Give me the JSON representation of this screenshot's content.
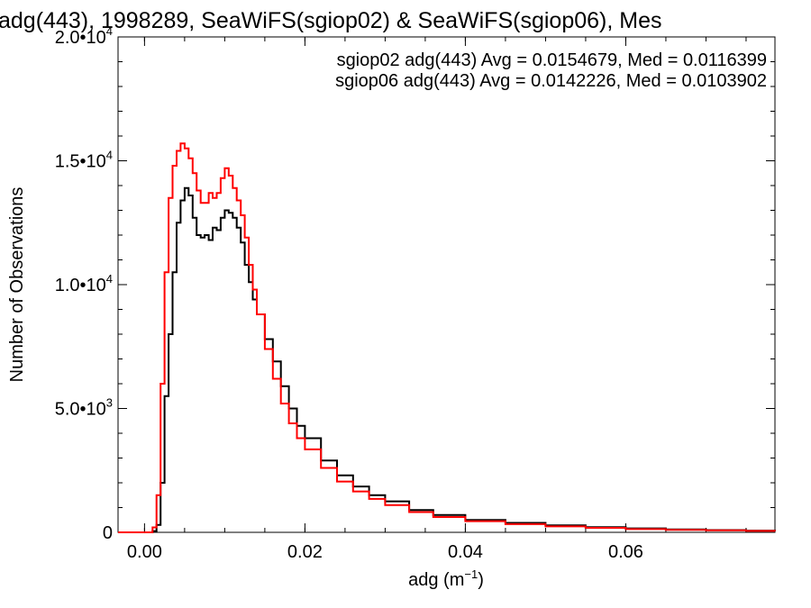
{
  "chart_data": {
    "type": "line",
    "title": "adg(443), 1998289, SeaWiFS(sgiop02) & SeaWiFS(sgiop06), Mes",
    "xlabel": "adg (m",
    "xlabel_sup": "−1",
    "xlabel_close": ")",
    "ylabel": "Number of Observations",
    "xlim": [
      -0.0033,
      0.0786
    ],
    "ylim": [
      0,
      20000
    ],
    "x_ticks": [
      {
        "value": 0.0,
        "label": "0.00"
      },
      {
        "value": 0.02,
        "label": "0.02"
      },
      {
        "value": 0.04,
        "label": "0.04"
      },
      {
        "value": 0.06,
        "label": "0.06"
      }
    ],
    "y_ticks": [
      {
        "value": 0,
        "mantissa": "0",
        "exp": ""
      },
      {
        "value": 5000,
        "mantissa": "5.0•10",
        "exp": "3"
      },
      {
        "value": 10000,
        "mantissa": "1.0•10",
        "exp": "4"
      },
      {
        "value": 15000,
        "mantissa": "1.5•10",
        "exp": "4"
      },
      {
        "value": 20000,
        "mantissa": "2.0•10",
        "exp": "4"
      }
    ],
    "grid": false,
    "legend": "top-right",
    "series": [
      {
        "name": "sgiop02 adg(443) Avg = 0.0154679, Med = 0.0116399",
        "color": "#000000",
        "x": [
          -0.0033,
          0.0,
          0.001,
          0.0015,
          0.002,
          0.0025,
          0.003,
          0.0035,
          0.004,
          0.0045,
          0.005,
          0.0055,
          0.006,
          0.0065,
          0.007,
          0.0075,
          0.008,
          0.0085,
          0.009,
          0.0095,
          0.01,
          0.0105,
          0.011,
          0.0115,
          0.012,
          0.0125,
          0.013,
          0.0135,
          0.014,
          0.015,
          0.016,
          0.017,
          0.018,
          0.019,
          0.02,
          0.022,
          0.024,
          0.026,
          0.028,
          0.03,
          0.033,
          0.036,
          0.04,
          0.045,
          0.05,
          0.055,
          0.06,
          0.065,
          0.07,
          0.075,
          0.0786
        ],
        "values": [
          0,
          0,
          50,
          300,
          2000,
          5500,
          8000,
          10500,
          12500,
          13400,
          13900,
          13600,
          12700,
          12000,
          11900,
          12000,
          11800,
          12300,
          12200,
          12700,
          13000,
          12900,
          12700,
          12300,
          11700,
          10800,
          10100,
          9400,
          8800,
          7800,
          6900,
          5900,
          5000,
          4300,
          3800,
          2900,
          2300,
          1850,
          1500,
          1250,
          900,
          700,
          500,
          380,
          280,
          210,
          160,
          120,
          90,
          70,
          60
        ]
      },
      {
        "name": "sgiop06 adg(443) Avg = 0.0142226, Med = 0.0103902",
        "color": "#ff0000",
        "x": [
          -0.0033,
          0.0,
          0.001,
          0.0015,
          0.002,
          0.0025,
          0.003,
          0.0035,
          0.004,
          0.0045,
          0.005,
          0.0055,
          0.006,
          0.0065,
          0.007,
          0.0075,
          0.008,
          0.0085,
          0.009,
          0.0095,
          0.01,
          0.0105,
          0.011,
          0.0115,
          0.012,
          0.0125,
          0.013,
          0.0135,
          0.014,
          0.015,
          0.016,
          0.017,
          0.018,
          0.019,
          0.02,
          0.022,
          0.024,
          0.026,
          0.028,
          0.03,
          0.033,
          0.036,
          0.04,
          0.045,
          0.05,
          0.055,
          0.06,
          0.065,
          0.07,
          0.075,
          0.0786
        ],
        "values": [
          0,
          0,
          200,
          1500,
          6000,
          10500,
          13500,
          14800,
          15400,
          15700,
          15500,
          15100,
          14500,
          13800,
          13300,
          13300,
          13700,
          13500,
          13700,
          14300,
          14700,
          14400,
          13900,
          13400,
          12800,
          11900,
          10800,
          9800,
          8800,
          7400,
          6200,
          5200,
          4400,
          3800,
          3350,
          2600,
          2050,
          1650,
          1350,
          1100,
          820,
          620,
          450,
          330,
          240,
          180,
          130,
          100,
          80,
          60,
          50
        ]
      }
    ]
  }
}
